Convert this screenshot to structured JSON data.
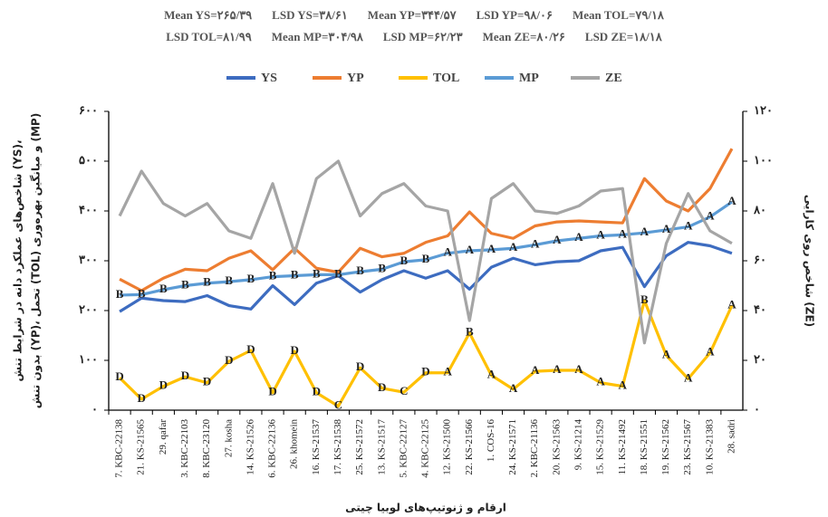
{
  "chart_data": {
    "type": "line",
    "annotations": [
      [
        "Mean YS=۲۶۵/۳۹",
        "LSD YS=۳۸/۶۱",
        "Mean YP=۳۴۴/۵۷",
        "LSD YP=۹۸/۰۶",
        "Mean TOL=۷۹/۱۸"
      ],
      [
        "LSD TOL=۸۱/۹۹",
        "Mean MP=۳۰۴/۹۸",
        "LSD MP=۶۲/۲۳",
        "Mean ZE=۸۰/۲۶",
        "LSD ZE=۱۸/۱۸"
      ]
    ],
    "y_label": [
      "شاخص‌های عملکرد دانه در شرایط تنش (YS)،",
      "بدون تنش (YP)، تحمل (TOL) و میانگین بهره‌وری (MP)"
    ],
    "y2_label": "شاخص روی کارایی (ZE)",
    "x_label": "ارقام و ژنوتیپ‌های لوبیا چیتی",
    "categories": [
      "7. KBC-22138",
      "21. KS-21565",
      "29. qafar",
      "3. KBC-22103",
      "8. KBC-23120",
      "27. kosha",
      "14. KS-21526",
      "6. KBC-22136",
      "26. khomein",
      "16. KS-21537",
      "17. KS-21538",
      "25. KS-21572",
      "13. KS-21517",
      "5. KBC-22127",
      "4. KBC-22125",
      "12. KS-21500",
      "22. KS-21566",
      "1. COS-16",
      "24. KS-21571",
      "2. KBC-21136",
      "20. KS-21563",
      "9. KS-21214",
      "15. KS-21529",
      "11. KS-21492",
      "18. KS-21551",
      "19. KS-21562",
      "23. KS-21567",
      "10. KS-21383",
      "28. sadri"
    ],
    "series": [
      {
        "name": "YS",
        "color": "#3d6cc0",
        "values": [
          198,
          225,
          220,
          218,
          230,
          210,
          203,
          250,
          212,
          255,
          270,
          237,
          262,
          280,
          265,
          280,
          243,
          287,
          305,
          292,
          298,
          300,
          320,
          327,
          248,
          310,
          337,
          330,
          315
        ]
      },
      {
        "name": "YP",
        "color": "#ed7d31",
        "values": [
          263,
          240,
          265,
          283,
          280,
          305,
          320,
          282,
          325,
          285,
          277,
          325,
          308,
          315,
          337,
          350,
          398,
          355,
          345,
          370,
          378,
          380,
          378,
          376,
          465,
          420,
          400,
          445,
          525
        ]
      },
      {
        "name": "TOL",
        "color": "#ffc000",
        "values": [
          65,
          22,
          48,
          67,
          55,
          98,
          120,
          35,
          118,
          35,
          8,
          85,
          44,
          36,
          75,
          75,
          155,
          70,
          42,
          78,
          80,
          80,
          55,
          48,
          220,
          110,
          63,
          115,
          210
        ],
        "letters": [
          "D",
          "D",
          "D",
          "D",
          "D",
          "D",
          "D",
          "D",
          "D",
          "D",
          "C",
          "D",
          "D",
          "C",
          "D",
          "A",
          "B",
          "A",
          "A",
          "A",
          "A",
          "A",
          "A",
          "A",
          "B",
          "A",
          "A",
          "A",
          "A"
        ],
        "letter_colors": {
          "A": "#000000",
          "B": "#ff0000",
          "C": "#ff0000",
          "D": "#000000"
        }
      },
      {
        "name": "MP",
        "color": "#5b9bd5",
        "values": [
          231,
          232,
          242,
          250,
          255,
          258,
          262,
          268,
          270,
          272,
          272,
          278,
          283,
          298,
          302,
          315,
          320,
          322,
          325,
          332,
          340,
          345,
          350,
          352,
          356,
          362,
          368,
          388,
          418
        ],
        "letters": [
          "B",
          "B",
          "B",
          "B",
          "B",
          "B",
          "B",
          "B",
          "B",
          "B",
          "B",
          "B",
          "B",
          "B",
          "B",
          "A",
          "A",
          "A",
          "A",
          "A",
          "A",
          "A",
          "A",
          "A",
          "A",
          "A",
          "A",
          "A",
          "A"
        ],
        "letter_colors": {
          "A": "#000000",
          "B": "#7030a0"
        }
      },
      {
        "name": "ZE",
        "color": "#a5a5a5",
        "axis": "y2",
        "values": [
          78,
          96,
          83,
          78,
          83,
          72,
          69,
          91,
          63,
          93,
          100,
          78,
          87,
          91,
          82,
          80,
          36,
          85,
          91,
          80,
          79,
          82,
          88,
          89,
          27,
          67,
          87,
          72,
          67
        ]
      }
    ],
    "ylim": [
      0,
      600
    ],
    "yticks": [
      {
        "value": 0,
        "label": "۰"
      },
      {
        "value": 100,
        "label": "۱۰۰"
      },
      {
        "value": 200,
        "label": "۲۰۰"
      },
      {
        "value": 300,
        "label": "۳۰۰"
      },
      {
        "value": 400,
        "label": "۴۰۰"
      },
      {
        "value": 500,
        "label": "۵۰۰"
      },
      {
        "value": 600,
        "label": "۶۰۰"
      }
    ],
    "y2lim": [
      0,
      120
    ],
    "y2ticks": [
      {
        "value": 0,
        "label": "۰"
      },
      {
        "value": 20,
        "label": "۲۰"
      },
      {
        "value": 40,
        "label": "۴۰"
      },
      {
        "value": 60,
        "label": "۶۰"
      },
      {
        "value": 80,
        "label": "۸۰"
      },
      {
        "value": 100,
        "label": "۱۰۰"
      },
      {
        "value": 120,
        "label": "۱۲۰"
      }
    ],
    "legend": "top"
  }
}
